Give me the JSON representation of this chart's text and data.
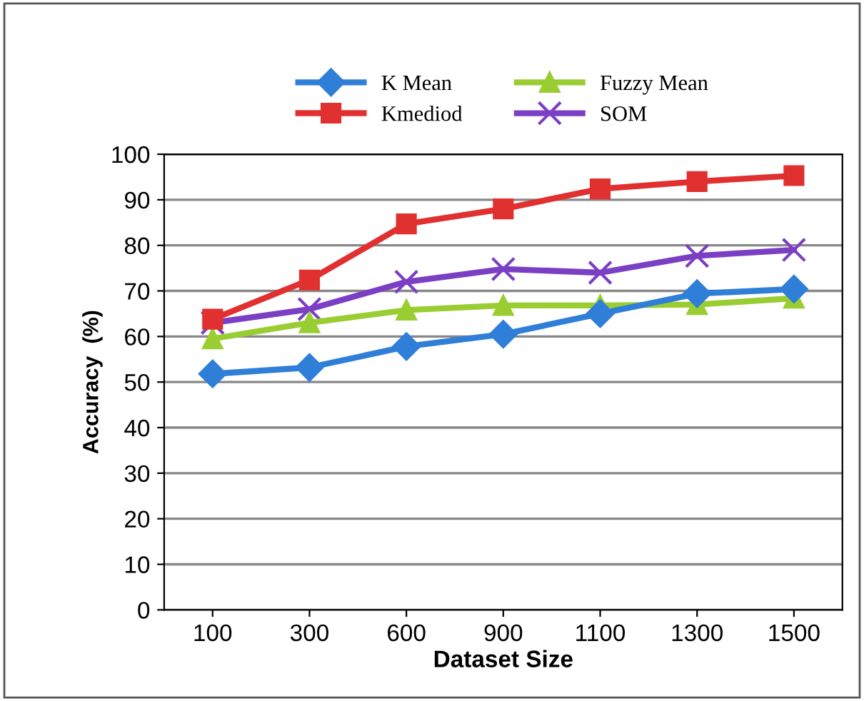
{
  "chart_data": {
    "type": "line",
    "xlabel": "Dataset Size",
    "ylabel": "Accuracy  (%)",
    "categories": [
      "100",
      "300",
      "600",
      "900",
      "1100",
      "1300",
      "1500"
    ],
    "series": [
      {
        "name": "K Mean",
        "color": "#2f7fd8",
        "marker": "diamond",
        "values": [
          51.8,
          53.2,
          57.8,
          60.5,
          65,
          69.4,
          70.4
        ]
      },
      {
        "name": "Kmediod",
        "color": "#e03030",
        "marker": "square",
        "values": [
          63.8,
          72.4,
          84.7,
          88,
          92.4,
          94,
          95.3
        ]
      },
      {
        "name": "Fuzzy Mean",
        "color": "#9acd32",
        "marker": "triangle",
        "values": [
          59.5,
          63,
          65.8,
          66.8,
          66.8,
          67,
          68.4
        ]
      },
      {
        "name": "SOM",
        "color": "#7b3fc4",
        "marker": "cross",
        "values": [
          63,
          66,
          72,
          74.8,
          74,
          77.7,
          79
        ]
      }
    ],
    "ylim": [
      0,
      100
    ],
    "yticks": [
      0,
      10,
      20,
      30,
      40,
      50,
      60,
      70,
      80,
      90,
      100
    ],
    "grid": "y",
    "legend": "top"
  }
}
